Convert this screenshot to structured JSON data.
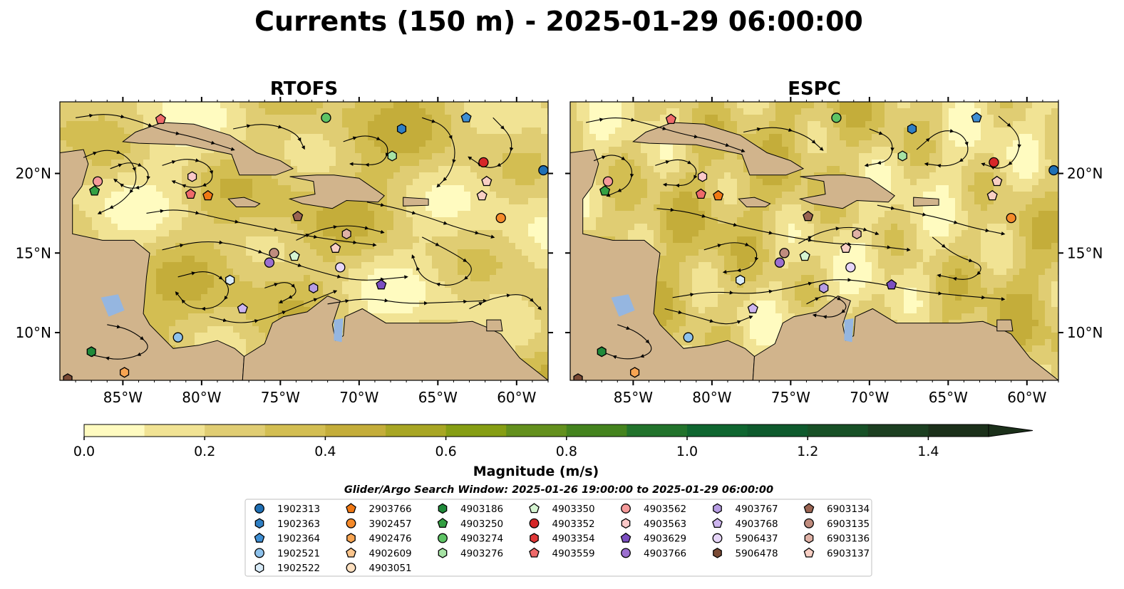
{
  "figure": {
    "title": "Currents (150 m) - 2025-01-29 06:00:00",
    "colorbar_label": "Magnitude (m/s)",
    "search_window": "Glider/Argo Search Window: 2025-01-26 19:00:00 to 2025-01-29 06:00:00"
  },
  "colors": {
    "ocean": "#95b6e0",
    "land": "#d1b48c",
    "streamline": "#000000",
    "colormap": [
      "#fffbc0",
      "#f1e394",
      "#e0cd73",
      "#d3be52",
      "#c4ad3a",
      "#a8a624",
      "#869e14",
      "#63901d",
      "#44831e",
      "#22732c",
      "#0f6630",
      "#0e5a2d",
      "#175026",
      "#1c3f21",
      "#1b301a"
    ]
  },
  "chart_data": [
    {
      "type": "streamline_map",
      "title": "RTOFS",
      "lon_range": [
        -89,
        -58
      ],
      "lat_range": [
        7,
        24.5
      ],
      "xticks": [
        "85°W",
        "80°W",
        "75°W",
        "70°W",
        "65°W",
        "60°W"
      ],
      "xtick_values": [
        -85,
        -80,
        -75,
        -70,
        -65,
        -60
      ],
      "yticks": [
        "20°N",
        "15°N",
        "10°N"
      ],
      "ytick_values": [
        20,
        15,
        10
      ],
      "ytick_side": "left",
      "floats": [
        {
          "id": "1902313",
          "lon": -58.3,
          "lat": 20.2
        },
        {
          "id": "1902364",
          "lon": -63.2,
          "lat": 23.5
        },
        {
          "id": "1902363",
          "lon": -67.3,
          "lat": 22.8
        },
        {
          "id": "4903274",
          "lon": -72.1,
          "lat": 23.5
        },
        {
          "id": "4903276",
          "lon": -67.9,
          "lat": 21.1
        },
        {
          "id": "4903559",
          "lon": -82.6,
          "lat": 23.4
        },
        {
          "id": "4903562",
          "lon": -86.6,
          "lat": 19.5
        },
        {
          "id": "4903250",
          "lon": -86.8,
          "lat": 18.9
        },
        {
          "id": "4903563",
          "lon": -80.6,
          "lat": 19.8
        },
        {
          "id": "4903559",
          "lon": -80.7,
          "lat": 18.7
        },
        {
          "id": "2903766",
          "lon": -79.6,
          "lat": 18.6
        },
        {
          "id": "4903352",
          "lon": -62.1,
          "lat": 20.7
        },
        {
          "id": "6903137",
          "lon": -61.9,
          "lat": 19.5
        },
        {
          "id": "6903137",
          "lon": -62.2,
          "lat": 18.6
        },
        {
          "id": "3902457",
          "lon": -61.0,
          "lat": 17.2
        },
        {
          "id": "6903134",
          "lon": -73.9,
          "lat": 17.3
        },
        {
          "id": "6903136",
          "lon": -70.8,
          "lat": 16.2
        },
        {
          "id": "6903137",
          "lon": -71.5,
          "lat": 15.3
        },
        {
          "id": "6903135",
          "lon": -75.4,
          "lat": 15.0
        },
        {
          "id": "4903766",
          "lon": -75.7,
          "lat": 14.4
        },
        {
          "id": "4903350",
          "lon": -74.1,
          "lat": 14.8
        },
        {
          "id": "5906437",
          "lon": -71.2,
          "lat": 14.1
        },
        {
          "id": "1902522",
          "lon": -78.2,
          "lat": 13.3
        },
        {
          "id": "4903767",
          "lon": -72.9,
          "lat": 12.8
        },
        {
          "id": "4903629",
          "lon": -68.6,
          "lat": 13.0
        },
        {
          "id": "4903768",
          "lon": -77.4,
          "lat": 11.5
        },
        {
          "id": "1902521",
          "lon": -81.5,
          "lat": 9.7
        },
        {
          "id": "4903186",
          "lon": -87.0,
          "lat": 8.8
        },
        {
          "id": "4902476",
          "lon": -84.9,
          "lat": 7.5
        },
        {
          "id": "5906478",
          "lon": -88.5,
          "lat": 7.1
        }
      ]
    },
    {
      "type": "streamline_map",
      "title": "ESPC",
      "lon_range": [
        -89,
        -58
      ],
      "lat_range": [
        7,
        24.5
      ],
      "xticks": [
        "85°W",
        "80°W",
        "75°W",
        "70°W",
        "65°W",
        "60°W"
      ],
      "xtick_values": [
        -85,
        -80,
        -75,
        -70,
        -65,
        -60
      ],
      "yticks": [
        "20°N",
        "15°N",
        "10°N"
      ],
      "ytick_values": [
        20,
        15,
        10
      ],
      "ytick_side": "right",
      "floats": [
        {
          "id": "1902313",
          "lon": -58.3,
          "lat": 20.2
        },
        {
          "id": "1902364",
          "lon": -63.2,
          "lat": 23.5
        },
        {
          "id": "1902363",
          "lon": -67.3,
          "lat": 22.8
        },
        {
          "id": "4903274",
          "lon": -72.1,
          "lat": 23.5
        },
        {
          "id": "4903276",
          "lon": -67.9,
          "lat": 21.1
        },
        {
          "id": "4903559",
          "lon": -82.6,
          "lat": 23.4
        },
        {
          "id": "4903562",
          "lon": -86.6,
          "lat": 19.5
        },
        {
          "id": "4903250",
          "lon": -86.8,
          "lat": 18.9
        },
        {
          "id": "4903563",
          "lon": -80.6,
          "lat": 19.8
        },
        {
          "id": "4903559",
          "lon": -80.7,
          "lat": 18.7
        },
        {
          "id": "2903766",
          "lon": -79.6,
          "lat": 18.6
        },
        {
          "id": "4903352",
          "lon": -62.1,
          "lat": 20.7
        },
        {
          "id": "6903137",
          "lon": -61.9,
          "lat": 19.5
        },
        {
          "id": "6903137",
          "lon": -62.2,
          "lat": 18.6
        },
        {
          "id": "3902457",
          "lon": -61.0,
          "lat": 17.2
        },
        {
          "id": "6903134",
          "lon": -73.9,
          "lat": 17.3
        },
        {
          "id": "6903136",
          "lon": -70.8,
          "lat": 16.2
        },
        {
          "id": "6903137",
          "lon": -71.5,
          "lat": 15.3
        },
        {
          "id": "6903135",
          "lon": -75.4,
          "lat": 15.0
        },
        {
          "id": "4903766",
          "lon": -75.7,
          "lat": 14.4
        },
        {
          "id": "4903350",
          "lon": -74.1,
          "lat": 14.8
        },
        {
          "id": "5906437",
          "lon": -71.2,
          "lat": 14.1
        },
        {
          "id": "1902522",
          "lon": -78.2,
          "lat": 13.3
        },
        {
          "id": "4903767",
          "lon": -72.9,
          "lat": 12.8
        },
        {
          "id": "4903629",
          "lon": -68.6,
          "lat": 13.0
        },
        {
          "id": "4903768",
          "lon": -77.4,
          "lat": 11.5
        },
        {
          "id": "1902521",
          "lon": -81.5,
          "lat": 9.7
        },
        {
          "id": "4903186",
          "lon": -87.0,
          "lat": 8.8
        },
        {
          "id": "4902476",
          "lon": -84.9,
          "lat": 7.5
        },
        {
          "id": "5906478",
          "lon": -88.5,
          "lat": 7.1
        }
      ]
    },
    {
      "type": "colorbar",
      "label": "Magnitude (m/s)",
      "range": [
        0,
        1.5
      ],
      "extend": "max",
      "boundaries": [
        0,
        0.1,
        0.2,
        0.3,
        0.4,
        0.5,
        0.6,
        0.7,
        0.8,
        0.9,
        1.0,
        1.1,
        1.2,
        1.3,
        1.4,
        1.5
      ],
      "ticks": [
        "0.0",
        "0.2",
        "0.4",
        "0.6",
        "0.8",
        "1.0",
        "1.2",
        "1.4"
      ],
      "tick_values": [
        0,
        0.2,
        0.4,
        0.6,
        0.8,
        1.0,
        1.2,
        1.4
      ]
    }
  ],
  "legend": {
    "columns": [
      [
        {
          "id": "1902313",
          "marker": "circle",
          "color": "#1f6fb4"
        },
        {
          "id": "1902363",
          "marker": "hexagon",
          "color": "#2f7fc4"
        },
        {
          "id": "1902364",
          "marker": "pentagon",
          "color": "#3f8fd4"
        },
        {
          "id": "1902521",
          "marker": "circle",
          "color": "#8ec2ec"
        },
        {
          "id": "1902522",
          "marker": "hexagon",
          "color": "#d8ebf8"
        }
      ],
      [
        {
          "id": "2903766",
          "marker": "pentagon",
          "color": "#f07814"
        },
        {
          "id": "3902457",
          "marker": "circle",
          "color": "#f58a2a"
        },
        {
          "id": "4902476",
          "marker": "hexagon",
          "color": "#f8a552"
        },
        {
          "id": "4902609",
          "marker": "pentagon",
          "color": "#fbc58c"
        },
        {
          "id": "4903051",
          "marker": "circle",
          "color": "#fde0c0"
        }
      ],
      [
        {
          "id": "4903186",
          "marker": "hexagon",
          "color": "#1f8a3a"
        },
        {
          "id": "4903250",
          "marker": "pentagon",
          "color": "#34a043"
        },
        {
          "id": "4903274",
          "marker": "circle",
          "color": "#5ec465"
        },
        {
          "id": "4903276",
          "marker": "hexagon",
          "color": "#a6e2a4"
        }
      ],
      [
        {
          "id": "4903350",
          "marker": "pentagon",
          "color": "#d6f5d2"
        },
        {
          "id": "4903352",
          "marker": "circle",
          "color": "#d62728"
        },
        {
          "id": "4903354",
          "marker": "hexagon",
          "color": "#e03838"
        },
        {
          "id": "4903559",
          "marker": "pentagon",
          "color": "#ef6a6a"
        }
      ],
      [
        {
          "id": "4903562",
          "marker": "circle",
          "color": "#f59a9a"
        },
        {
          "id": "4903563",
          "marker": "hexagon",
          "color": "#fbc8c8"
        },
        {
          "id": "4903629",
          "marker": "pentagon",
          "color": "#7b4ec0"
        },
        {
          "id": "4903766",
          "marker": "circle",
          "color": "#9b6fcf"
        }
      ],
      [
        {
          "id": "4903767",
          "marker": "hexagon",
          "color": "#b79de3"
        },
        {
          "id": "4903768",
          "marker": "pentagon",
          "color": "#cdb5ef"
        },
        {
          "id": "5906437",
          "marker": "circle",
          "color": "#e6d5f8"
        },
        {
          "id": "5906478",
          "marker": "hexagon",
          "color": "#7a4a35"
        }
      ],
      [
        {
          "id": "6903134",
          "marker": "pentagon",
          "color": "#9a6452"
        },
        {
          "id": "6903135",
          "marker": "circle",
          "color": "#c08c7e"
        },
        {
          "id": "6903136",
          "marker": "hexagon",
          "color": "#e0b2a6"
        },
        {
          "id": "6903137",
          "marker": "pentagon",
          "color": "#f8cfc4"
        }
      ]
    ]
  }
}
